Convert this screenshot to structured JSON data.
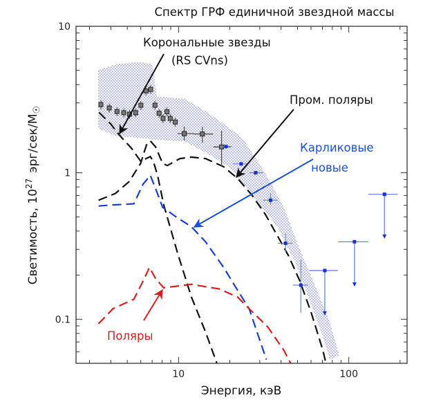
{
  "chart_data": {
    "type": "line",
    "title": "Спектр ГРФ единичной звездной массы",
    "xlabel": "Энергия, кэВ",
    "ylabel_main": "Светимость, 10",
    "ylabel_exp": "27",
    "ylabel_unit": "эрг/сек/M",
    "ylabel_sun": "☉",
    "x_scale": "log",
    "y_scale": "log",
    "xlim": [
      2.5,
      220
    ],
    "ylim": [
      0.05,
      10
    ],
    "x_ticks": [
      {
        "v": 10,
        "label": "10"
      },
      {
        "v": 100,
        "label": "100"
      }
    ],
    "y_ticks": [
      {
        "v": 10,
        "label": "10"
      },
      {
        "v": 1,
        "label": "1"
      },
      {
        "v": 0.1,
        "label": "0.1"
      }
    ],
    "grid": false,
    "colors": {
      "coronal": "#111111",
      "intermediate_polars": "#111111",
      "dwarf_novae": "#1a3cc8",
      "polars": "#d42020",
      "band": "#5a66b0",
      "blue_points": "#1a2fd0",
      "gray_points": "#444444"
    },
    "annotations": {
      "coronal_line1": "Корональные звезды",
      "coronal_line2": "(RS CVns)",
      "intermediate_polars": "Пром. поляры",
      "dwarf_novae_line1": "Карликовые",
      "dwarf_novae_line2": "новые",
      "polars": "Поляры"
    },
    "band": {
      "upper": [
        [
          3.37,
          5.03
        ],
        [
          4.39,
          5.53
        ],
        [
          5.81,
          5.71
        ],
        [
          7.01,
          5.53
        ],
        [
          7.46,
          3.31
        ],
        [
          10.8,
          3.21
        ],
        [
          14.8,
          2.58
        ],
        [
          20.2,
          1.99
        ],
        [
          23.7,
          1.73
        ],
        [
          32.2,
          1.0
        ],
        [
          41.5,
          0.582
        ],
        [
          51.4,
          0.303
        ],
        [
          64.2,
          0.164
        ],
        [
          77.4,
          0.095
        ],
        [
          87.7,
          0.057
        ]
      ],
      "lower": [
        [
          3.37,
          2.0
        ],
        [
          4.26,
          1.79
        ],
        [
          7.91,
          1.67
        ],
        [
          10.8,
          1.64
        ],
        [
          14.8,
          1.35
        ],
        [
          20.2,
          1.08
        ],
        [
          27.7,
          0.672
        ],
        [
          37.8,
          0.435
        ],
        [
          48.5,
          0.244
        ],
        [
          58.5,
          0.137
        ],
        [
          70.5,
          0.076
        ],
        [
          77.4,
          0.053
        ]
      ]
    },
    "series": [
      {
        "key": "coronal",
        "style": "dashed",
        "points": [
          [
            3.41,
            2.58
          ],
          [
            4.0,
            2.15
          ],
          [
            4.47,
            1.82
          ],
          [
            5.29,
            1.47
          ],
          [
            5.99,
            1.2
          ],
          [
            6.83,
            1.29
          ],
          [
            7.14,
            1.18
          ],
          [
            7.55,
            0.95
          ],
          [
            8.19,
            0.603
          ],
          [
            9.88,
            0.282
          ],
          [
            11.9,
            0.142
          ],
          [
            14.4,
            0.082
          ],
          [
            16.8,
            0.05
          ]
        ]
      },
      {
        "key": "intermediate_polars",
        "style": "dashed",
        "points": [
          [
            3.39,
            0.649
          ],
          [
            4.26,
            0.723
          ],
          [
            5.13,
            0.871
          ],
          [
            5.99,
            1.16
          ],
          [
            6.48,
            1.55
          ],
          [
            6.83,
            1.65
          ],
          [
            7.34,
            1.5
          ],
          [
            8.06,
            1.16
          ],
          [
            8.59,
            1.12
          ],
          [
            10.2,
            1.25
          ],
          [
            11.9,
            1.28
          ],
          [
            14.4,
            1.25
          ],
          [
            18.4,
            1.1
          ],
          [
            22.2,
            0.916
          ],
          [
            26.8,
            0.71
          ],
          [
            32.3,
            0.522
          ],
          [
            37.8,
            0.377
          ],
          [
            44.2,
            0.272
          ],
          [
            51.6,
            0.182
          ],
          [
            60.3,
            0.11
          ],
          [
            70.5,
            0.061
          ],
          [
            73.4,
            0.05
          ]
        ]
      },
      {
        "key": "dwarf_novae",
        "style": "dashed",
        "points": [
          [
            3.39,
            0.593
          ],
          [
            4.12,
            0.603
          ],
          [
            5.46,
            0.614
          ],
          [
            6.19,
            0.836
          ],
          [
            6.83,
            0.96
          ],
          [
            7.34,
            0.778
          ],
          [
            8.06,
            0.582
          ],
          [
            9.57,
            0.504
          ],
          [
            11.9,
            0.428
          ],
          [
            14.4,
            0.338
          ],
          [
            18.4,
            0.226
          ],
          [
            22.2,
            0.158
          ],
          [
            26.0,
            0.118
          ],
          [
            32.8,
            0.053
          ]
        ]
      },
      {
        "key": "polars",
        "style": "dashed",
        "points": [
          [
            3.39,
            0.0933
          ],
          [
            4.12,
            0.118
          ],
          [
            5.46,
            0.137
          ],
          [
            6.19,
            0.182
          ],
          [
            6.75,
            0.226
          ],
          [
            7.34,
            0.189
          ],
          [
            8.19,
            0.164
          ],
          [
            11.9,
            0.173
          ],
          [
            17.3,
            0.161
          ],
          [
            22.2,
            0.142
          ],
          [
            26.0,
            0.118
          ],
          [
            33.4,
            0.0887
          ],
          [
            41.5,
            0.0614
          ],
          [
            45.6,
            0.05
          ]
        ]
      }
    ],
    "gray_points": [
      {
        "x": 3.5,
        "y": 2.92
      },
      {
        "x": 3.92,
        "y": 2.77
      },
      {
        "x": 4.35,
        "y": 2.62
      },
      {
        "x": 4.77,
        "y": 2.57
      },
      {
        "x": 5.16,
        "y": 2.51
      },
      {
        "x": 5.6,
        "y": 2.57
      },
      {
        "x": 6.01,
        "y": 2.89
      },
      {
        "x": 6.44,
        "y": 3.62
      },
      {
        "x": 6.86,
        "y": 3.71
      },
      {
        "x": 7.27,
        "y": 2.89
      },
      {
        "x": 7.69,
        "y": 2.55
      },
      {
        "x": 8.11,
        "y": 2.35
      },
      {
        "x": 8.55,
        "y": 2.61
      },
      {
        "x": 8.94,
        "y": 2.35
      },
      {
        "x": 9.57,
        "y": 2.22
      },
      {
        "x": 10.8,
        "y": 1.85,
        "xerr": [
          9.88,
          12.3
        ],
        "yerr": [
          1.67,
          2.06
        ]
      },
      {
        "x": 13.8,
        "y": 1.84,
        "xerr": [
          12.3,
          15.9
        ],
        "yerr": [
          1.6,
          2.06
        ]
      },
      {
        "x": 17.9,
        "y": 1.5,
        "xerr": [
          16.0,
          20.2
        ],
        "yerr": [
          1.1,
          1.94
        ]
      }
    ],
    "blue_points": [
      {
        "x": 19.0,
        "y": 1.51,
        "xerr": [
          17.5,
          20.6
        ]
      },
      {
        "x": 23.3,
        "y": 1.15,
        "xerr": [
          20.9,
          25.6
        ]
      },
      {
        "x": 28.4,
        "y": 1.0,
        "xerr": [
          26.0,
          31.3
        ]
      },
      {
        "x": 34.7,
        "y": 0.65,
        "xerr": [
          31.3,
          38.4
        ],
        "yerr": [
          0.604,
          0.722
        ]
      },
      {
        "x": 42.5,
        "y": 0.33,
        "xerr": [
          38.4,
          47.0
        ],
        "yerr": [
          0.287,
          0.384
        ]
      },
      {
        "x": 52.3,
        "y": 0.171,
        "xerr": [
          47.0,
          57.5
        ],
        "yerr": [
          0.111,
          0.256
        ]
      }
    ],
    "upper_limits": [
      {
        "x": 72.3,
        "y": 0.215,
        "xerr": [
          58.5,
          86.3
        ],
        "arrow_to": 0.106
      },
      {
        "x": 108,
        "y": 0.338,
        "xerr": [
          86.9,
          130
        ],
        "arrow_to": 0.167
      },
      {
        "x": 162,
        "y": 0.713,
        "xerr": [
          130,
          194
        ],
        "arrow_to": 0.355
      }
    ]
  }
}
